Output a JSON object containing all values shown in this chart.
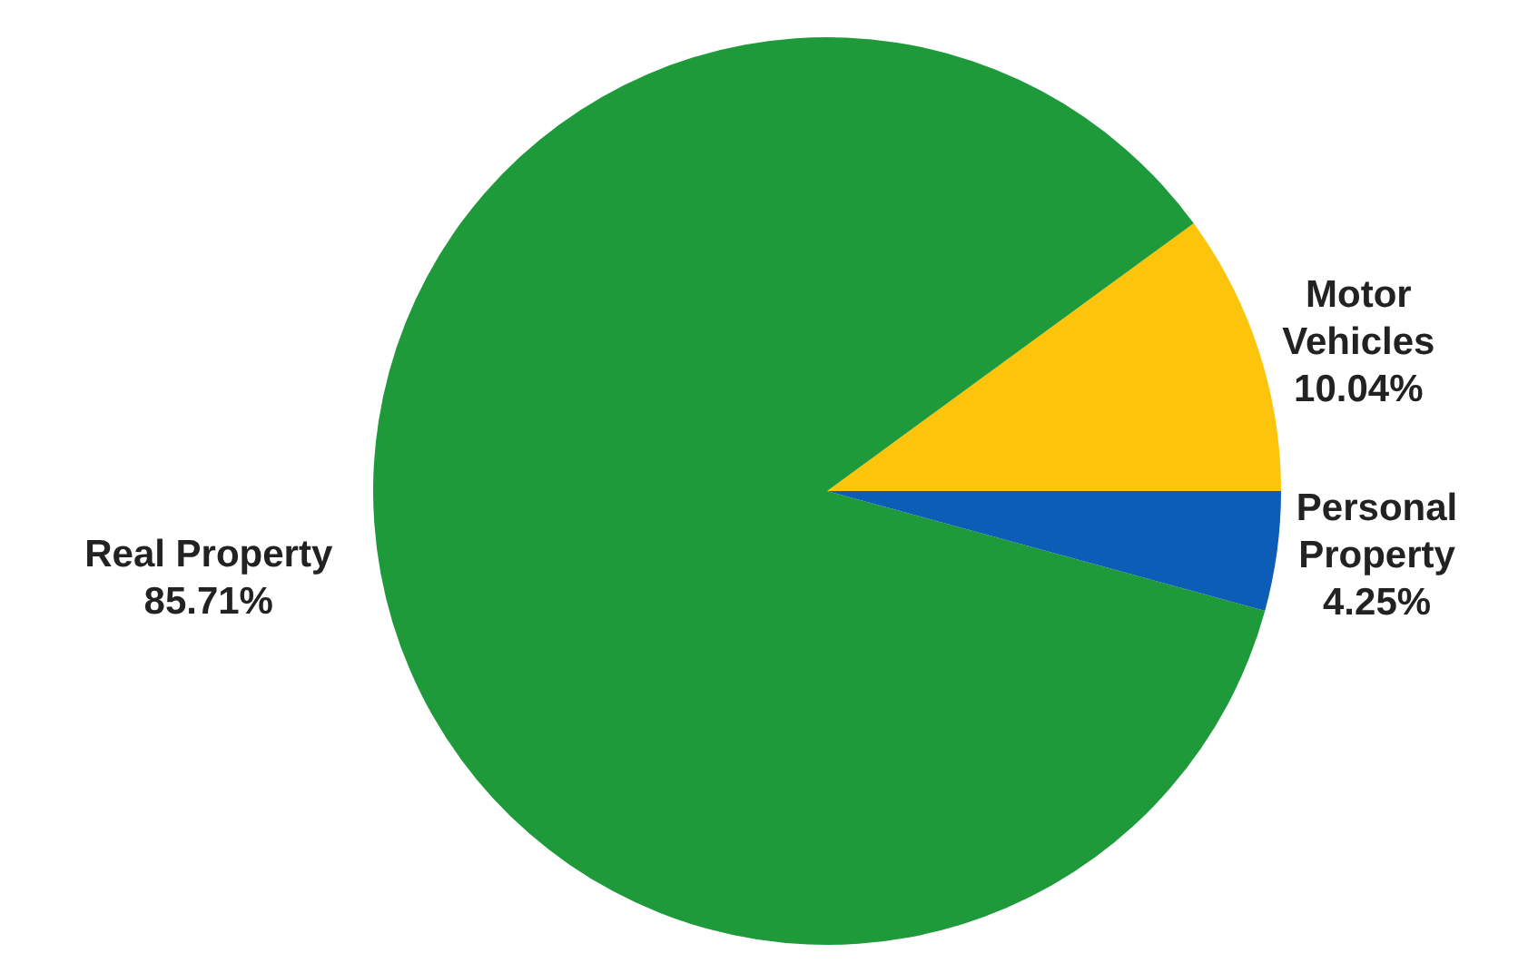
{
  "chart_data": {
    "type": "pie",
    "categories": [
      "Motor Vehicles",
      "Real Property",
      "Personal Property"
    ],
    "values": [
      10.04,
      85.71,
      4.25
    ],
    "colors": [
      "#fcc50c",
      "#1f9a3b",
      "#0b5db5"
    ],
    "value_labels": [
      "10.04%",
      "85.71%",
      "4.25%"
    ]
  }
}
